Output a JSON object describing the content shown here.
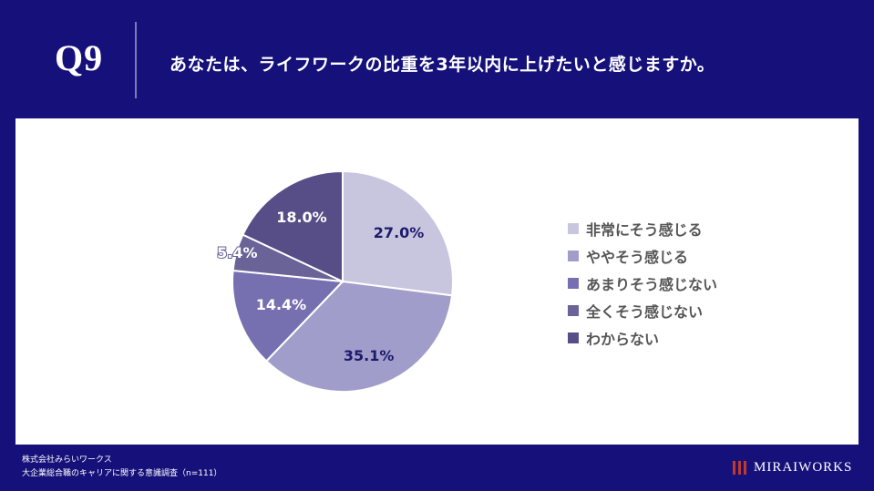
{
  "header": {
    "question_number": "Q9",
    "question_text": "あなたは、ライフワークの比重を3年以内に上げたいと感じますか。"
  },
  "chart_data": {
    "type": "pie",
    "title": "あなたは、ライフワークの比重を3年以内に上げたいと感じますか。",
    "categories": [
      "非常にそう感じる",
      "ややそう感じる",
      "あまりそう感じない",
      "全くそう感じない",
      "わからない"
    ],
    "values": [
      27.0,
      35.1,
      14.4,
      5.4,
      18.0
    ],
    "labels": [
      "27.0%",
      "35.1%",
      "14.4%",
      "5.4%",
      "18.0%"
    ],
    "colors": [
      "#c8c6df",
      "#a19dcb",
      "#7670b0",
      "#6a6398",
      "#584e87"
    ],
    "label_colors": [
      "#1e1a6b",
      "#1e1a6b",
      "#ffffff",
      "#ffffff",
      "#ffffff"
    ],
    "legend_position": "right"
  },
  "footer": {
    "company": "株式会社みらいワークス",
    "survey": "大企業総合職のキャリアに関する意識調査（n=111）"
  },
  "logo": {
    "text": "MIRAIWORKS"
  }
}
